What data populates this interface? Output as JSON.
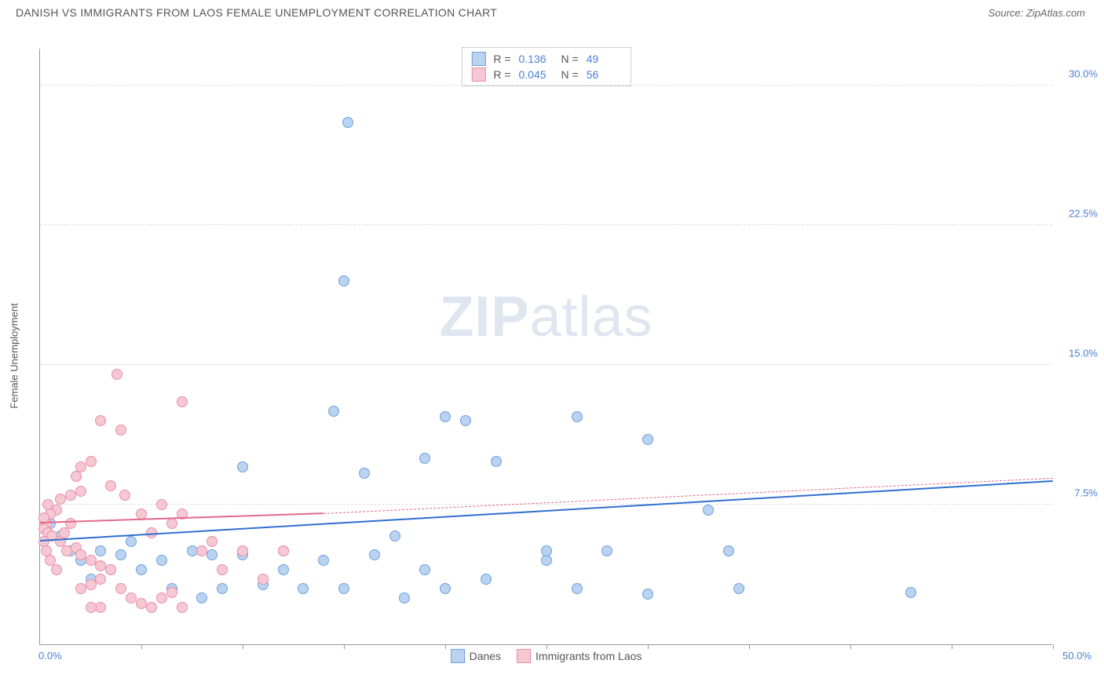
{
  "title": "DANISH VS IMMIGRANTS FROM LAOS FEMALE UNEMPLOYMENT CORRELATION CHART",
  "source": "Source: ZipAtlas.com",
  "ylabel": "Female Unemployment",
  "watermark_bold": "ZIP",
  "watermark_rest": "atlas",
  "chart": {
    "type": "scatter",
    "xlim": [
      0,
      50
    ],
    "ylim": [
      0,
      32
    ],
    "x_labels": {
      "min": "0.0%",
      "max": "50.0%"
    },
    "y_ticks": [
      7.5,
      15.0,
      22.5,
      30.0
    ],
    "y_tick_labels": [
      "7.5%",
      "15.0%",
      "22.5%",
      "30.0%"
    ],
    "x_minor_ticks": [
      5,
      10,
      15,
      20,
      25,
      30,
      35,
      40,
      45,
      50
    ],
    "grid_color": "#dddddd",
    "axis_color": "#999999",
    "background": "#ffffff",
    "label_color": "#4a7fd8",
    "point_radius": 7,
    "series": [
      {
        "name": "Danes",
        "fill": "#b9d3f0",
        "stroke": "#6fa0dd",
        "trend_color": "#2f6fcf",
        "trend_solid": {
          "x1": 0,
          "y1": 5.5,
          "x2": 50,
          "y2": 8.7
        },
        "R": "0.136",
        "N": "49",
        "points": [
          [
            15.2,
            28.0
          ],
          [
            15.0,
            19.5
          ],
          [
            30.0,
            11.0
          ],
          [
            20.0,
            12.2
          ],
          [
            21.0,
            12.0
          ],
          [
            26.5,
            12.2
          ],
          [
            14.5,
            12.5
          ],
          [
            16.0,
            9.2
          ],
          [
            19.0,
            10.0
          ],
          [
            10.0,
            9.5
          ],
          [
            22.5,
            9.8
          ],
          [
            33.0,
            7.2
          ],
          [
            34.0,
            5.0
          ],
          [
            28.0,
            5.0
          ],
          [
            25.0,
            4.5
          ],
          [
            26.5,
            3.0
          ],
          [
            25.0,
            5.0
          ],
          [
            22.0,
            3.5
          ],
          [
            20.0,
            3.0
          ],
          [
            19.0,
            4.0
          ],
          [
            17.5,
            5.8
          ],
          [
            16.5,
            4.8
          ],
          [
            15.0,
            3.0
          ],
          [
            14.0,
            4.5
          ],
          [
            13.0,
            3.0
          ],
          [
            12.0,
            5.0
          ],
          [
            12.0,
            4.0
          ],
          [
            11.0,
            3.2
          ],
          [
            10.0,
            4.8
          ],
          [
            9.0,
            3.0
          ],
          [
            8.5,
            4.8
          ],
          [
            7.5,
            5.0
          ],
          [
            6.5,
            3.0
          ],
          [
            6.0,
            4.5
          ],
          [
            5.0,
            4.0
          ],
          [
            4.5,
            5.5
          ],
          [
            4.0,
            4.8
          ],
          [
            3.5,
            4.0
          ],
          [
            3.0,
            5.0
          ],
          [
            2.5,
            3.5
          ],
          [
            0.5,
            6.5
          ],
          [
            1.0,
            5.8
          ],
          [
            1.5,
            5.0
          ],
          [
            2.0,
            4.5
          ],
          [
            43.0,
            2.8
          ],
          [
            34.5,
            3.0
          ],
          [
            30.0,
            2.7
          ],
          [
            18.0,
            2.5
          ],
          [
            8.0,
            2.5
          ]
        ]
      },
      {
        "name": "Immigrants from Laos",
        "fill": "#f6c8d4",
        "stroke": "#e88fa8",
        "trend_color": "#e06a8a",
        "trend_solid": {
          "x1": 0,
          "y1": 6.5,
          "x2": 14,
          "y2": 7.0
        },
        "trend_dash": {
          "x1": 14,
          "y1": 7.0,
          "x2": 50,
          "y2": 8.9
        },
        "R": "0.045",
        "N": "56",
        "points": [
          [
            3.8,
            14.5
          ],
          [
            3.0,
            12.0
          ],
          [
            4.0,
            11.5
          ],
          [
            7.0,
            13.0
          ],
          [
            2.5,
            9.8
          ],
          [
            2.0,
            9.5
          ],
          [
            1.8,
            9.0
          ],
          [
            3.5,
            8.5
          ],
          [
            4.2,
            8.0
          ],
          [
            2.0,
            8.2
          ],
          [
            1.5,
            8.0
          ],
          [
            1.0,
            7.8
          ],
          [
            0.8,
            7.2
          ],
          [
            0.5,
            7.0
          ],
          [
            0.3,
            6.5
          ],
          [
            0.2,
            6.2
          ],
          [
            0.4,
            6.0
          ],
          [
            0.6,
            5.8
          ],
          [
            1.0,
            5.5
          ],
          [
            1.3,
            5.0
          ],
          [
            1.8,
            5.2
          ],
          [
            2.0,
            4.8
          ],
          [
            2.5,
            4.5
          ],
          [
            3.0,
            4.2
          ],
          [
            3.5,
            4.0
          ],
          [
            3.0,
            3.5
          ],
          [
            2.5,
            3.2
          ],
          [
            2.0,
            3.0
          ],
          [
            4.0,
            3.0
          ],
          [
            4.5,
            2.5
          ],
          [
            5.0,
            2.2
          ],
          [
            5.5,
            2.0
          ],
          [
            6.0,
            2.5
          ],
          [
            6.5,
            2.8
          ],
          [
            7.0,
            2.0
          ],
          [
            3.0,
            2.0
          ],
          [
            2.5,
            2.0
          ],
          [
            5.0,
            7.0
          ],
          [
            5.5,
            6.0
          ],
          [
            6.0,
            7.5
          ],
          [
            6.5,
            6.5
          ],
          [
            7.0,
            7.0
          ],
          [
            8.0,
            5.0
          ],
          [
            8.5,
            5.5
          ],
          [
            9.0,
            4.0
          ],
          [
            10.0,
            5.0
          ],
          [
            11.0,
            3.5
          ],
          [
            12.0,
            5.0
          ],
          [
            0.2,
            5.5
          ],
          [
            0.3,
            5.0
          ],
          [
            0.5,
            4.5
          ],
          [
            0.8,
            4.0
          ],
          [
            1.2,
            6.0
          ],
          [
            1.5,
            6.5
          ],
          [
            0.2,
            6.8
          ],
          [
            0.4,
            7.5
          ]
        ]
      }
    ]
  }
}
